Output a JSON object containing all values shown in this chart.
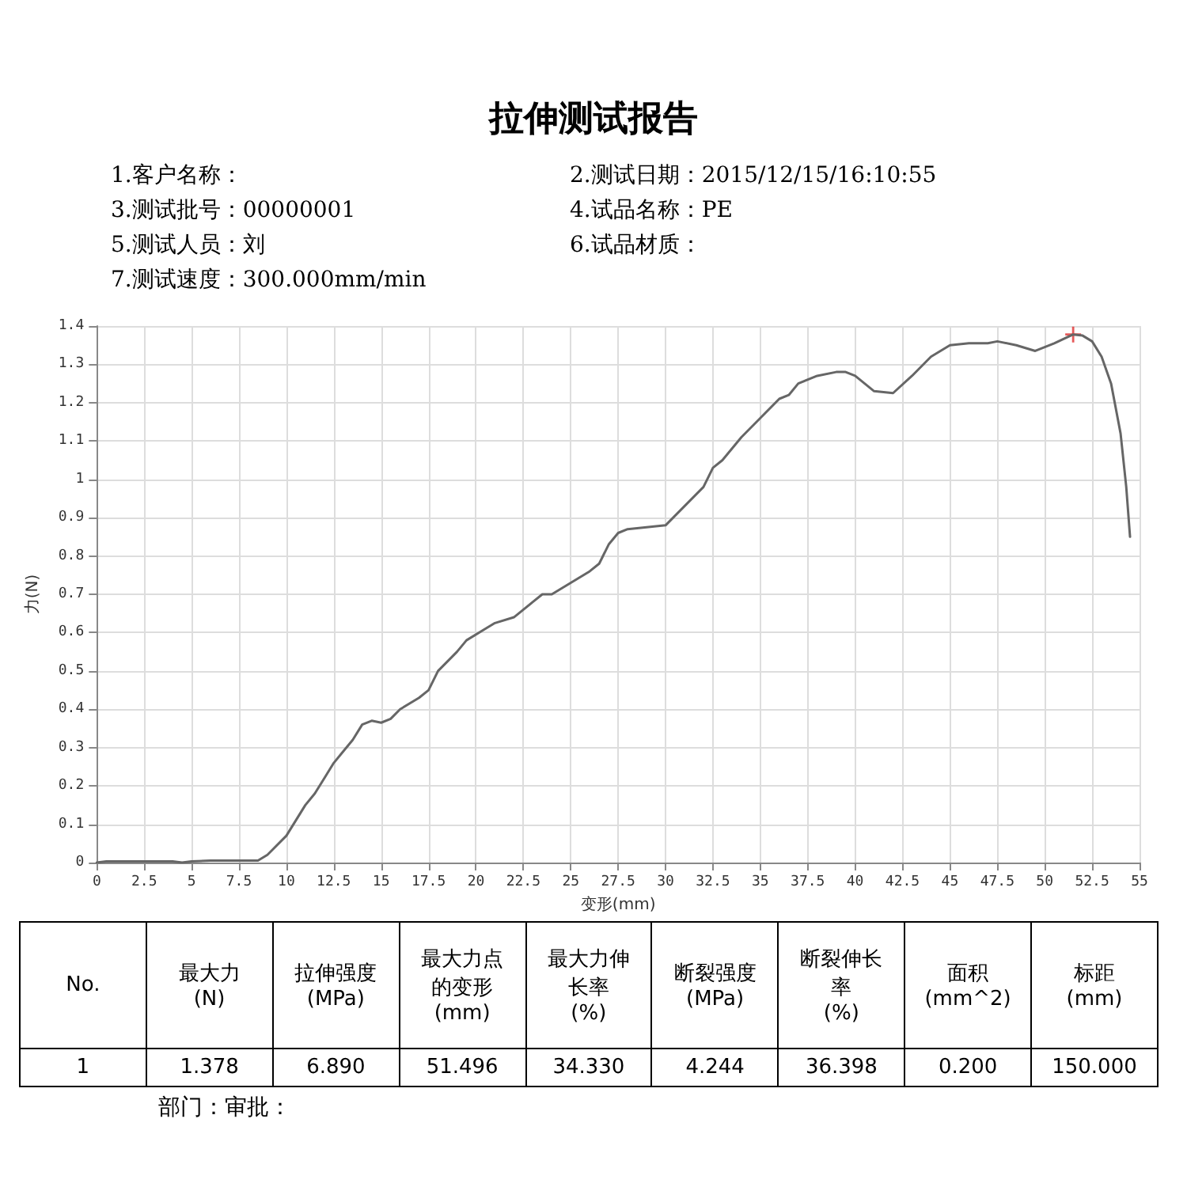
{
  "chart_data": {
    "type": "line",
    "title": "拉伸测试报告",
    "xlabel": "变形(mm)",
    "ylabel": "力(N)",
    "xlim": [
      0,
      55
    ],
    "xticks": [
      0,
      2.5,
      5,
      7.5,
      10,
      12.5,
      15,
      17.5,
      20,
      22.5,
      25,
      27.5,
      30,
      32.5,
      35,
      37.5,
      40,
      42.5,
      45,
      47.5,
      50,
      52.5,
      55
    ],
    "ylim": [
      0,
      1.4
    ],
    "yticks": [
      0,
      0.1,
      0.2,
      0.3,
      0.4,
      0.5,
      0.6,
      0.7,
      0.8,
      0.9,
      1,
      1.1,
      1.2,
      1.3,
      1.4
    ],
    "grid": true,
    "marker": "none",
    "line_style": "solid",
    "series": [
      {
        "color": "#666666",
        "x": [
          0,
          0.5,
          4,
          4.5,
          5,
          6,
          8.5,
          9,
          10,
          11,
          11.5,
          12,
          12.5,
          13,
          13.5,
          14,
          14.5,
          15,
          15.5,
          16,
          17,
          17.5,
          18,
          19,
          19.5,
          20.5,
          21,
          22,
          23,
          23.5,
          24,
          25,
          26,
          26.5,
          27,
          27.5,
          28,
          29,
          30,
          31,
          32,
          32.5,
          33,
          34,
          35,
          36,
          36.5,
          37,
          38,
          39,
          39.5,
          40,
          41,
          42,
          43,
          44,
          45,
          46,
          47,
          47.5,
          48.5,
          49.5,
          50.5,
          51.5,
          52,
          52.5,
          53,
          53.5,
          54,
          54.3,
          54.5
        ],
        "values": [
          0,
          0.003,
          0.003,
          0,
          0.003,
          0.005,
          0.005,
          0.02,
          0.07,
          0.15,
          0.18,
          0.22,
          0.26,
          0.29,
          0.32,
          0.36,
          0.37,
          0.365,
          0.375,
          0.4,
          0.43,
          0.45,
          0.5,
          0.55,
          0.58,
          0.61,
          0.625,
          0.64,
          0.68,
          0.7,
          0.7,
          0.73,
          0.76,
          0.78,
          0.83,
          0.86,
          0.87,
          0.875,
          0.88,
          0.93,
          0.98,
          1.03,
          1.05,
          1.11,
          1.16,
          1.21,
          1.22,
          1.25,
          1.27,
          1.28,
          1.28,
          1.27,
          1.23,
          1.225,
          1.27,
          1.32,
          1.35,
          1.355,
          1.355,
          1.36,
          1.35,
          1.335,
          1.355,
          1.378,
          1.375,
          1.36,
          1.32,
          1.25,
          1.12,
          0.98,
          0.85
        ]
      },
      {
        "type": "scatter",
        "marker": "cross",
        "color": "#e03030",
        "x": [
          51.5
        ],
        "values": [
          1.378
        ]
      }
    ],
    "annotations": [
      "1.客户名称：",
      "2.测试日期：2015/12/15/16:10:55",
      "3.测试批号：00000001",
      "4.试品名称：PE",
      "5.测试人员：刘",
      "6.试品材质：",
      "7.测试速度：300.000mm/min",
      "No.",
      "最大力\n(N)",
      "拉伸强度\n(MPa)",
      "最大力点的变形\n(mm)",
      "最大力伸长率\n(%)",
      "断裂强度\n(MPa)",
      "断裂伸长率\n(%)",
      "面积\n(mm^2)",
      "标距\n(mm)",
      "1",
      "1.378",
      "6.890",
      "51.496",
      "34.330",
      "4.244",
      "36.398",
      "0.200",
      "150.000",
      "部门：审批："
    ]
  }
}
